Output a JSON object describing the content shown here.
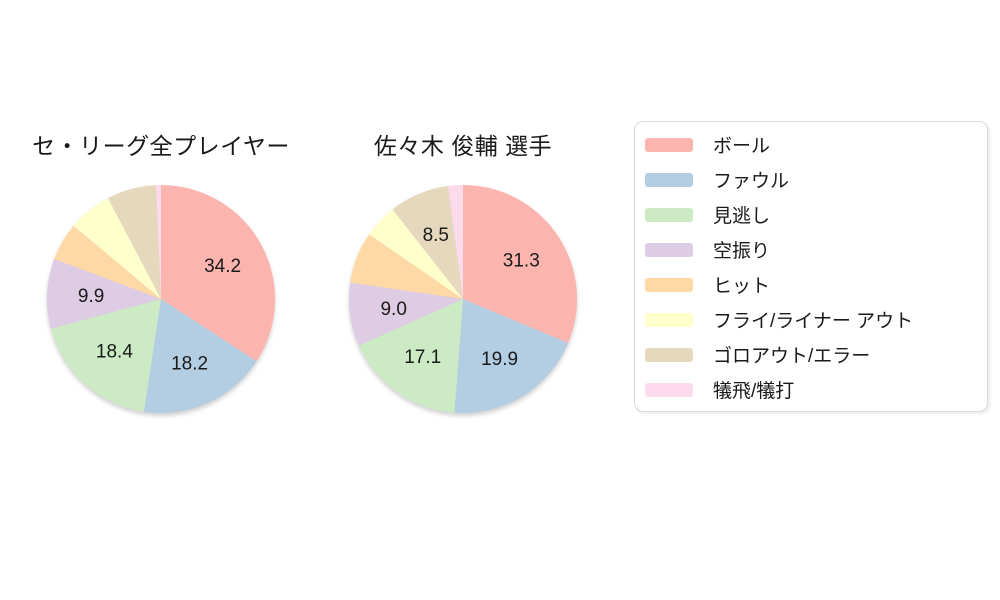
{
  "page": {
    "background": "#ffffff",
    "text_color": "#1a1a1a"
  },
  "legend": {
    "position": "right",
    "border_color": "#d9d9d9",
    "background": "#ffffff",
    "items": [
      {
        "key": "ball",
        "label": "ボール",
        "color": "#fbb4ae"
      },
      {
        "key": "foul",
        "label": "ファウル",
        "color": "#b3cde3"
      },
      {
        "key": "called-strike",
        "label": "見逃し",
        "color": "#ccebc5"
      },
      {
        "key": "swinging-strike",
        "label": "空振り",
        "color": "#decbe4"
      },
      {
        "key": "hit",
        "label": "ヒット",
        "color": "#fed9a6"
      },
      {
        "key": "fly-liner-out",
        "label": "フライ/ライナー アウト",
        "color": "#ffffcc"
      },
      {
        "key": "groundout-error",
        "label": "ゴロアウト/エラー",
        "color": "#e5d8bd"
      },
      {
        "key": "sacrifice",
        "label": "犠飛/犠打",
        "color": "#fddaec"
      }
    ]
  },
  "chart_data": [
    {
      "type": "pie",
      "title": "セ・リーグ全プレイヤー",
      "start_angle": "top",
      "direction": "clockwise",
      "slices": [
        {
          "label": "ボール",
          "value": 34.2,
          "show_value": true
        },
        {
          "label": "ファウル",
          "value": 18.2,
          "show_value": true
        },
        {
          "label": "見逃し",
          "value": 18.4,
          "show_value": true
        },
        {
          "label": "空振り",
          "value": 9.9,
          "show_value": true
        },
        {
          "label": "ヒット",
          "value": 5.4,
          "show_value": false
        },
        {
          "label": "フライ/ライナー アウト",
          "value": 6.2,
          "show_value": false
        },
        {
          "label": "ゴロアウト/エラー",
          "value": 7.0,
          "show_value": false
        },
        {
          "label": "犠飛/犠打",
          "value": 0.7,
          "show_value": false
        }
      ]
    },
    {
      "type": "pie",
      "title": "佐々木 俊輔 選手",
      "start_angle": "top",
      "direction": "clockwise",
      "slices": [
        {
          "label": "ボール",
          "value": 31.3,
          "show_value": true
        },
        {
          "label": "ファウル",
          "value": 19.9,
          "show_value": true
        },
        {
          "label": "見逃し",
          "value": 17.1,
          "show_value": true
        },
        {
          "label": "空振り",
          "value": 9.0,
          "show_value": true
        },
        {
          "label": "ヒット",
          "value": 7.3,
          "show_value": false
        },
        {
          "label": "フライ/ライナー アウト",
          "value": 4.8,
          "show_value": false
        },
        {
          "label": "ゴロアウト/エラー",
          "value": 8.5,
          "show_value": true
        },
        {
          "label": "犠飛/犠打",
          "value": 2.1,
          "show_value": false
        }
      ]
    }
  ]
}
